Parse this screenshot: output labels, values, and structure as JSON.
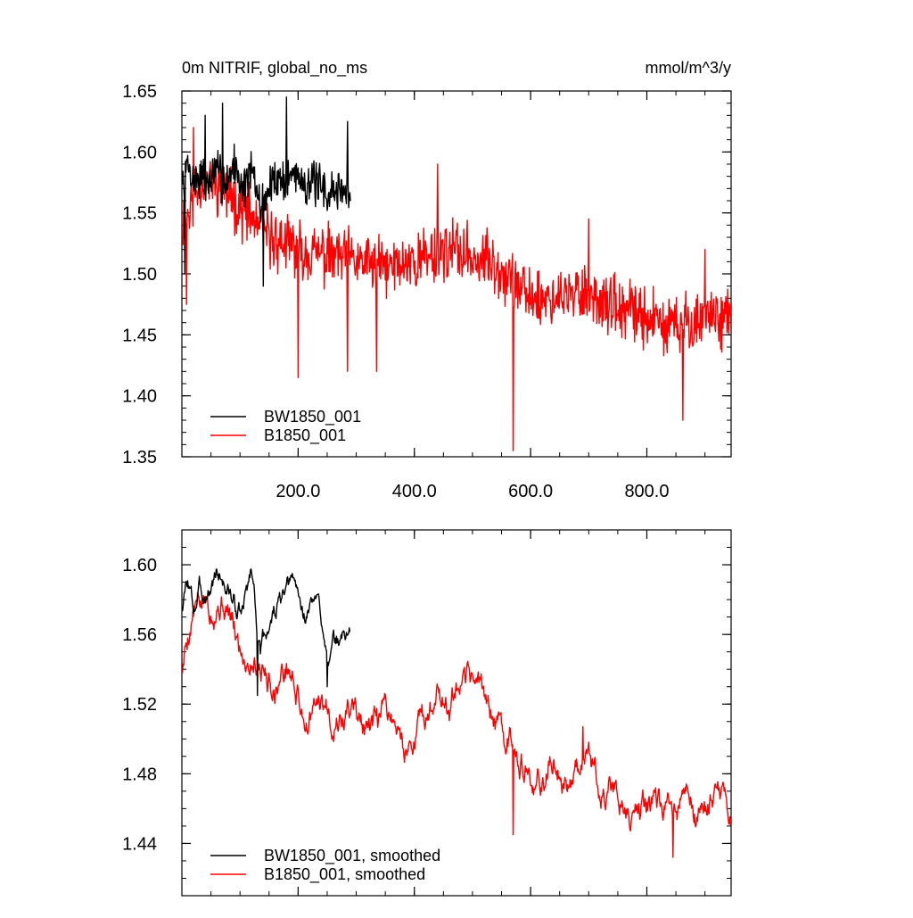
{
  "header": {
    "title_left": "0m NITRIF, global_no_ms",
    "title_right": "mmol/m^3/y"
  },
  "colors": {
    "bw": "#000000",
    "b": "#ff0000"
  },
  "chart_data": [
    {
      "type": "line",
      "title": "0m NITRIF, global_no_ms",
      "units": "mmol/m^3/y",
      "xlim": [
        0,
        945
      ],
      "ylim": [
        1.35,
        1.65
      ],
      "xticks": [
        200,
        400,
        600,
        800
      ],
      "xtick_labels": [
        "200.0",
        "400.0",
        "600.0",
        "800.0"
      ],
      "yticks": [
        1.35,
        1.4,
        1.45,
        1.5,
        1.55,
        1.6,
        1.65
      ],
      "ytick_labels": [
        "1.35",
        "1.40",
        "1.45",
        "1.50",
        "1.55",
        "1.60",
        "1.65"
      ],
      "legend_position": "bottom-left",
      "series": [
        {
          "name": "BW1850_001",
          "color": "#000000",
          "x_start": 1,
          "x_end": 290,
          "anchor_x": [
            1,
            10,
            20,
            30,
            45,
            60,
            75,
            90,
            105,
            120,
            135,
            150,
            165,
            180,
            195,
            210,
            225,
            240,
            255,
            270,
            290
          ],
          "anchor_y": [
            1.57,
            1.59,
            1.575,
            1.58,
            1.575,
            1.585,
            1.575,
            1.59,
            1.57,
            1.585,
            1.555,
            1.57,
            1.58,
            1.575,
            1.585,
            1.575,
            1.575,
            1.57,
            1.565,
            1.57,
            1.565
          ],
          "noise_amp": 0.022,
          "seed": 7,
          "spikes": [
            [
              5,
              1.5
            ],
            [
              40,
              1.63
            ],
            [
              70,
              1.64
            ],
            [
              140,
              1.49
            ],
            [
              180,
              1.645
            ],
            [
              285,
              1.625
            ]
          ]
        },
        {
          "name": "B1850_001",
          "color": "#ff0000",
          "x_start": 1,
          "x_end": 945,
          "anchor_x": [
            1,
            30,
            60,
            90,
            120,
            150,
            200,
            250,
            300,
            350,
            400,
            450,
            500,
            550,
            600,
            650,
            700,
            750,
            800,
            850,
            900,
            945
          ],
          "anchor_y": [
            1.54,
            1.575,
            1.575,
            1.56,
            1.545,
            1.53,
            1.52,
            1.515,
            1.51,
            1.505,
            1.51,
            1.52,
            1.515,
            1.505,
            1.48,
            1.48,
            1.485,
            1.47,
            1.465,
            1.455,
            1.465,
            1.465
          ],
          "noise_amp": 0.03,
          "seed": 11,
          "spikes": [
            [
              8,
              1.475
            ],
            [
              20,
              1.62
            ],
            [
              200,
              1.415
            ],
            [
              285,
              1.42
            ],
            [
              335,
              1.42
            ],
            [
              440,
              1.59
            ],
            [
              570,
              1.355
            ],
            [
              700,
              1.545
            ],
            [
              862,
              1.38
            ],
            [
              900,
              1.52
            ]
          ]
        }
      ]
    },
    {
      "type": "line",
      "title": "",
      "xlim": [
        0,
        945
      ],
      "ylim": [
        1.41,
        1.62
      ],
      "xticks": [
        200,
        400,
        600,
        800
      ],
      "xtick_labels": [],
      "yticks": [
        1.44,
        1.48,
        1.52,
        1.56,
        1.6
      ],
      "ytick_labels": [
        "1.44",
        "1.48",
        "1.52",
        "1.56",
        "1.60"
      ],
      "legend_position": "bottom-left",
      "series": [
        {
          "name": "BW1850_001, smoothed",
          "color": "#000000",
          "x_start": 1,
          "x_end": 290,
          "anchor_x": [
            1,
            10,
            20,
            30,
            45,
            60,
            75,
            90,
            105,
            120,
            135,
            150,
            165,
            180,
            195,
            210,
            225,
            240,
            255,
            270,
            290
          ],
          "anchor_y": [
            1.575,
            1.585,
            1.57,
            1.585,
            1.59,
            1.595,
            1.585,
            1.58,
            1.575,
            1.595,
            1.545,
            1.57,
            1.58,
            1.575,
            1.585,
            1.575,
            1.58,
            1.565,
            1.55,
            1.56,
            1.56
          ],
          "noise_amp": 0.009,
          "seed": 3,
          "spikes": [
            [
              130,
              1.525
            ],
            [
              250,
              1.53
            ]
          ]
        },
        {
          "name": "B1850_001, smoothed",
          "color": "#ff0000",
          "x_start": 1,
          "x_end": 945,
          "anchor_x": [
            1,
            20,
            40,
            60,
            90,
            120,
            150,
            180,
            210,
            240,
            270,
            300,
            330,
            360,
            390,
            420,
            440,
            460,
            480,
            500,
            530,
            560,
            600,
            650,
            700,
            750,
            800,
            850,
            900,
            945
          ],
          "anchor_y": [
            1.54,
            1.57,
            1.585,
            1.58,
            1.565,
            1.545,
            1.54,
            1.535,
            1.52,
            1.51,
            1.52,
            1.51,
            1.505,
            1.51,
            1.5,
            1.505,
            1.54,
            1.51,
            1.52,
            1.54,
            1.51,
            1.505,
            1.475,
            1.48,
            1.49,
            1.465,
            1.46,
            1.455,
            1.46,
            1.465
          ],
          "noise_amp": 0.012,
          "seed": 5,
          "spikes": [
            [
              570,
              1.445
            ],
            [
              845,
              1.432
            ],
            [
              690,
              1.507
            ]
          ]
        }
      ]
    }
  ]
}
